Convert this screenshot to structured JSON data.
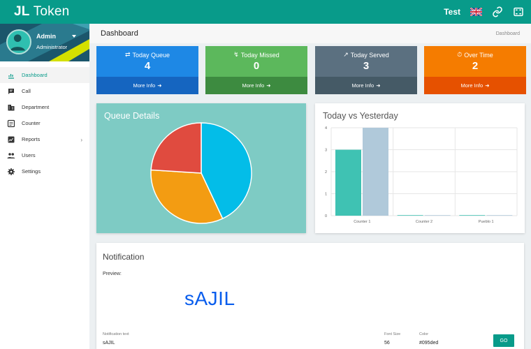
{
  "app": {
    "title_bold": "JL",
    "title_rest": "Token"
  },
  "topbar": {
    "user": "Test",
    "icons": [
      "uk-flag-icon",
      "link-icon",
      "fullscreen-icon"
    ]
  },
  "sidebar": {
    "profile": {
      "name": "Admin",
      "role": "Administrator"
    },
    "items": [
      {
        "label": "Dashboard",
        "icon": "dashboard-icon",
        "active": true
      },
      {
        "label": "Call",
        "icon": "call-icon"
      },
      {
        "label": "Department",
        "icon": "department-icon"
      },
      {
        "label": "Counter",
        "icon": "counter-icon"
      },
      {
        "label": "Reports",
        "icon": "reports-icon",
        "has_submenu": true
      },
      {
        "label": "Users",
        "icon": "users-icon"
      },
      {
        "label": "Settings",
        "icon": "settings-icon"
      }
    ]
  },
  "page": {
    "title": "Dashboard",
    "breadcrumb": "Dashboard"
  },
  "cards": [
    {
      "label": "Today Queue",
      "value": "4",
      "footer": "More Info",
      "color": "#1e88e5",
      "footer_color": "#1565c0"
    },
    {
      "label": "Today Missed",
      "value": "0",
      "footer": "More Info",
      "color": "#5cb85c",
      "footer_color": "#3d8b40"
    },
    {
      "label": "Today Served",
      "value": "3",
      "footer": "More Info",
      "color": "#5b7080",
      "footer_color": "#455a66"
    },
    {
      "label": "Over Time",
      "value": "2",
      "footer": "More Info",
      "color": "#f57c00",
      "footer_color": "#e65100"
    }
  ],
  "queue_details": {
    "title": "Queue Details"
  },
  "today_vs_yesterday": {
    "title": "Today vs Yesterday"
  },
  "notification": {
    "title": "Notification",
    "preview_label": "Preview:",
    "preview_text": "sAJIL",
    "text_label": "Notification text",
    "text_value": "sAJIL",
    "size_label": "Font Size",
    "size_value": "56",
    "color_label": "Color",
    "color_value": "#095ded",
    "button": "GO"
  },
  "chart_data": [
    {
      "type": "pie",
      "slices": [
        {
          "value": 43,
          "color": "#03bde8"
        },
        {
          "value": 33,
          "color": "#f39c12"
        },
        {
          "value": 24,
          "color": "#e04b3f"
        }
      ]
    },
    {
      "type": "bar",
      "categories": [
        "Counter 1",
        "Counter 2",
        "Pueblo 1"
      ],
      "series": [
        {
          "values": [
            3,
            0,
            0
          ],
          "color": "#3fc2b3"
        },
        {
          "values": [
            4,
            0,
            0
          ],
          "color": "#b0c9da"
        }
      ],
      "ylim": [
        0,
        4
      ],
      "yticks": [
        "0",
        "1",
        "2",
        "3",
        "4"
      ],
      "grid": true
    }
  ]
}
